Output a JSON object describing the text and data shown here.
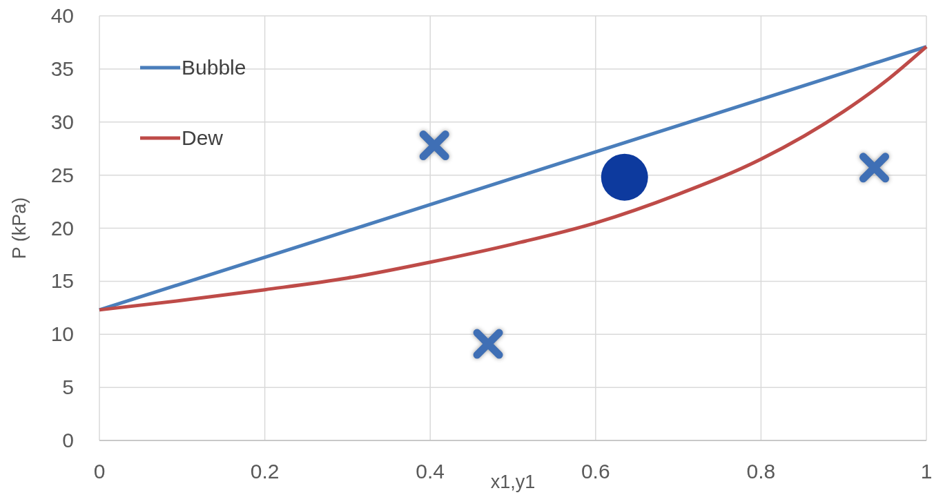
{
  "chart_data": {
    "type": "line",
    "xlabel": "x1,y1",
    "ylabel": "P (kPa)",
    "xlim": [
      0,
      1
    ],
    "xticks": [
      0,
      0.2,
      0.4,
      0.6,
      0.8,
      1
    ],
    "ylim": [
      0,
      40
    ],
    "yticks": [
      0,
      5,
      10,
      15,
      20,
      25,
      30,
      35,
      40
    ],
    "grid": true,
    "legend": "top left",
    "series": [
      {
        "name": "Bubble",
        "color": "#4a7ebb",
        "x": [
          0,
          0.5,
          1
        ],
        "values": [
          12.3,
          24.7,
          37.1
        ]
      },
      {
        "name": "Dew",
        "color": "#be4b48",
        "x": [
          0,
          0.1,
          0.2,
          0.3,
          0.4,
          0.5,
          0.6,
          0.7,
          0.8,
          0.9,
          0.95,
          1
        ],
        "values": [
          12.3,
          13.2,
          14.2,
          15.3,
          16.8,
          18.5,
          20.5,
          23.2,
          26.5,
          31.0,
          33.8,
          37.1
        ]
      },
      {
        "type": "scatter",
        "marker": "cross",
        "color": "#3f6fb5",
        "x": [
          0.405,
          0.47,
          0.937
        ],
        "values": [
          27.8,
          9.1,
          25.7
        ]
      },
      {
        "type": "scatter",
        "marker": "circle",
        "color": "#0d3a9e",
        "x": [
          0.635
        ],
        "values": [
          24.8
        ]
      }
    ]
  }
}
